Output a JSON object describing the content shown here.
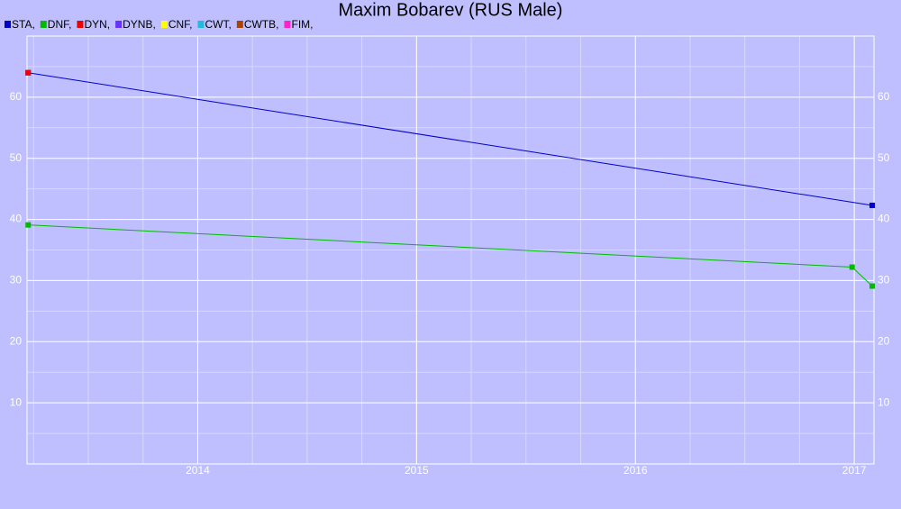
{
  "chart_data": {
    "type": "line",
    "title": "Maxim Bobarev (RUS Male)",
    "xlim": [
      2013.22,
      2017.09
    ],
    "xticks": [
      2014,
      2015,
      2016,
      2017
    ],
    "ylim": [
      0,
      70
    ],
    "yticks": [
      10,
      20,
      30,
      40,
      50,
      60
    ],
    "grid": true,
    "series": [
      {
        "name": "STA,",
        "color": "#0000cc",
        "x": [
          2013.225,
          2017.082
        ],
        "values": [
          64,
          42.3
        ]
      },
      {
        "name": "DNF,",
        "color": "#00bb00",
        "x": [
          2013.225,
          2016.99,
          2017.082
        ],
        "values": [
          39.1,
          32.2,
          29.1
        ]
      },
      {
        "name": "DYN,",
        "color": "#ee0000",
        "x": [
          2013.225
        ],
        "values": [
          64
        ]
      },
      {
        "name": "DYNB,",
        "color": "#6633ff",
        "x": [],
        "values": []
      },
      {
        "name": "CNF,",
        "color": "#ffff00",
        "x": [],
        "values": []
      },
      {
        "name": "CWT,",
        "color": "#22bbdd",
        "x": [],
        "values": []
      },
      {
        "name": "CWTB,",
        "color": "#aa4400",
        "x": [],
        "values": []
      },
      {
        "name": "FIM,",
        "color": "#ff22cc",
        "x": [],
        "values": []
      }
    ]
  }
}
